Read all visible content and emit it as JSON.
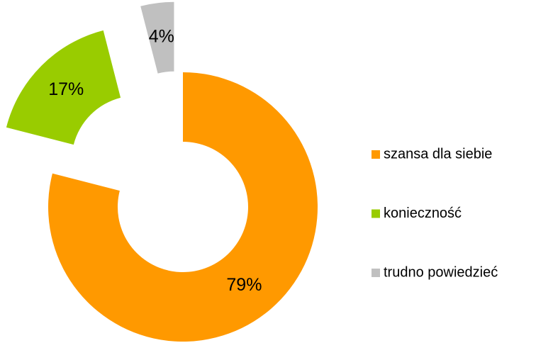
{
  "chart_data": {
    "type": "donut",
    "categories": [
      "szansa dla siebie",
      "konieczność",
      "trudno powiedzieć"
    ],
    "values": [
      79,
      17,
      4
    ],
    "value_labels": [
      "79%",
      "17%",
      "4%"
    ],
    "colors": [
      "#ff9900",
      "#99cc00",
      "#c0c0c0"
    ],
    "legend": "right"
  }
}
